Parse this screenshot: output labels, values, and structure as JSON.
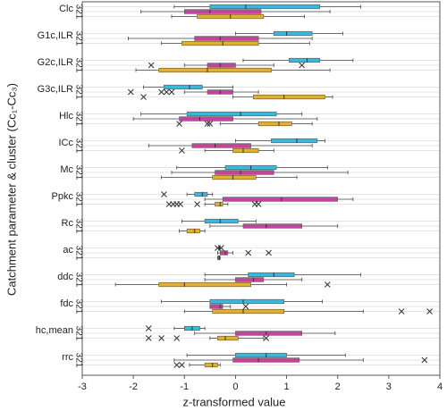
{
  "chart_data": {
    "type": "boxplot",
    "x_label": "z-transformed value",
    "y_label": "Catchment parameter & cluster (Cc₁-Cc₃)",
    "cluster_label": "321",
    "categories": [
      "Clc",
      "G1c,ILR",
      "G2c,ILR",
      "G3c,ILR",
      "Hlc",
      "ICc",
      "Mc",
      "Ppkc",
      "Rc",
      "ac",
      "ddc",
      "fdc",
      "hc,mean",
      "rrc"
    ],
    "series": [
      {
        "color": "#3fb7d8",
        "boxes": [
          {
            "whisker_low": -1.2,
            "q1": -0.5,
            "median": 0.2,
            "q3": 1.65,
            "whisker_high": 2.45,
            "outliers": []
          },
          {
            "whisker_low": 0.0,
            "q1": 0.75,
            "median": 1.0,
            "q3": 1.5,
            "whisker_high": 2.1,
            "outliers": []
          },
          {
            "whisker_low": 0.15,
            "q1": 1.05,
            "median": 1.4,
            "q3": 1.65,
            "whisker_high": 2.3,
            "outliers": []
          },
          {
            "whisker_low": -1.8,
            "q1": -1.4,
            "median": -0.9,
            "q3": -0.65,
            "whisker_high": -0.05,
            "outliers": []
          },
          {
            "whisker_low": -1.85,
            "q1": -0.95,
            "median": 0.1,
            "q3": 0.8,
            "whisker_high": 1.3,
            "outliers": []
          },
          {
            "whisker_low": 0.0,
            "q1": 0.7,
            "median": 1.2,
            "q3": 1.6,
            "whisker_high": 1.75,
            "outliers": []
          },
          {
            "whisker_low": -1.15,
            "q1": -0.2,
            "median": 0.3,
            "q3": 0.8,
            "whisker_high": 1.8,
            "outliers": []
          },
          {
            "whisker_low": -0.95,
            "q1": -0.8,
            "median": -0.65,
            "q3": -0.55,
            "whisker_high": -0.45,
            "outliers": [
              -1.4
            ]
          },
          {
            "whisker_low": -1.05,
            "q1": -0.6,
            "median": -0.3,
            "q3": 0.05,
            "whisker_high": 0.4,
            "outliers": []
          },
          {
            "whisker_low": -0.33,
            "q1": -0.32,
            "median": -0.315,
            "q3": -0.31,
            "whisker_high": -0.3,
            "outliers": [
              -0.35,
              -0.28
            ]
          },
          {
            "whisker_low": -0.6,
            "q1": 0.25,
            "median": 0.75,
            "q3": 1.15,
            "whisker_high": 2.45,
            "outliers": []
          },
          {
            "whisker_low": -1.45,
            "q1": -0.5,
            "median": 0.15,
            "q3": 0.95,
            "whisker_high": 1.7,
            "outliers": []
          },
          {
            "whisker_low": -1.2,
            "q1": -1.0,
            "median": -0.85,
            "q3": -0.7,
            "whisker_high": -0.6,
            "outliers": [
              -1.7
            ]
          },
          {
            "whisker_low": -0.95,
            "q1": 0.0,
            "median": 0.6,
            "q3": 1.0,
            "whisker_high": 2.15,
            "outliers": []
          }
        ]
      },
      {
        "color": "#c2449b",
        "boxes": [
          {
            "whisker_low": -1.85,
            "q1": -1.0,
            "median": -0.5,
            "q3": 0.5,
            "whisker_high": 1.85,
            "outliers": []
          },
          {
            "whisker_low": -2.1,
            "q1": -0.8,
            "median": -0.3,
            "q3": 0.45,
            "whisker_high": 1.5,
            "outliers": []
          },
          {
            "whisker_low": -1.0,
            "q1": -0.55,
            "median": -0.3,
            "q3": 0.0,
            "whisker_high": 0.75,
            "outliers": [
              -1.65,
              1.3
            ]
          },
          {
            "whisker_low": -1.0,
            "q1": -0.55,
            "median": -0.3,
            "q3": -0.05,
            "whisker_high": 0.45,
            "outliers": [
              -2.05,
              -1.45,
              -1.35,
              -1.25
            ]
          },
          {
            "whisker_low": -2.0,
            "q1": -1.1,
            "median": -0.7,
            "q3": -0.05,
            "whisker_high": 1.6,
            "outliers": []
          },
          {
            "whisker_low": -1.7,
            "q1": -0.85,
            "median": -0.4,
            "q3": 0.3,
            "whisker_high": 1.5,
            "outliers": []
          },
          {
            "whisker_low": -1.25,
            "q1": -0.4,
            "median": 0.1,
            "q3": 0.75,
            "whisker_high": 2.2,
            "outliers": []
          },
          {
            "whisker_low": -0.6,
            "q1": -0.25,
            "median": 0.9,
            "q3": 2.0,
            "whisker_high": 2.3,
            "outliers": []
          },
          {
            "whisker_low": -0.5,
            "q1": 0.15,
            "median": 0.6,
            "q3": 1.3,
            "whisker_high": 2.0,
            "outliers": []
          },
          {
            "whisker_low": -0.35,
            "q1": -0.3,
            "median": -0.2,
            "q3": -0.15,
            "whisker_high": -0.05,
            "outliers": [
              0.25,
              0.65
            ]
          },
          {
            "whisker_low": -0.6,
            "q1": 0.0,
            "median": 0.35,
            "q3": 0.55,
            "whisker_high": 1.3,
            "outliers": []
          },
          {
            "whisker_low": -0.5,
            "q1": -0.5,
            "median": -0.3,
            "q3": -0.25,
            "whisker_high": -0.1,
            "outliers": [
              0.2
            ]
          },
          {
            "whisker_low": -0.8,
            "q1": 0.0,
            "median": 0.6,
            "q3": 1.3,
            "whisker_high": 1.95,
            "outliers": []
          },
          {
            "whisker_low": -1.2,
            "q1": -0.05,
            "median": 0.45,
            "q3": 1.25,
            "whisker_high": 2.5,
            "outliers": [
              3.7
            ]
          }
        ]
      },
      {
        "color": "#e6b024",
        "boxes": [
          {
            "whisker_low": -1.25,
            "q1": -0.75,
            "median": -0.1,
            "q3": 0.55,
            "whisker_high": 1.35,
            "outliers": []
          },
          {
            "whisker_low": -1.45,
            "q1": -1.05,
            "median": -0.25,
            "q3": 0.45,
            "whisker_high": 1.45,
            "outliers": []
          },
          {
            "whisker_low": -1.95,
            "q1": -1.5,
            "median": -0.55,
            "q3": 0.7,
            "whisker_high": 1.85,
            "outliers": []
          },
          {
            "whisker_low": -0.05,
            "q1": 0.35,
            "median": 0.95,
            "q3": 1.75,
            "whisker_high": 1.9,
            "outliers": [
              -1.8
            ]
          },
          {
            "whisker_low": -0.3,
            "q1": 0.45,
            "median": 0.85,
            "q3": 1.1,
            "whisker_high": 1.5,
            "outliers": [
              -1.1,
              -0.55,
              -0.5
            ]
          },
          {
            "whisker_low": -0.6,
            "q1": -0.05,
            "median": 0.15,
            "q3": 0.45,
            "whisker_high": 0.75,
            "outliers": [
              -1.05
            ]
          },
          {
            "whisker_low": -1.45,
            "q1": -0.45,
            "median": -0.05,
            "q3": 0.4,
            "whisker_high": 1.2,
            "outliers": []
          },
          {
            "whisker_low": -0.6,
            "q1": -0.4,
            "median": -0.3,
            "q3": -0.25,
            "whisker_high": -0.15,
            "outliers": [
              -1.3,
              -1.22,
              -1.15,
              -1.08,
              -0.75,
              0.38,
              0.45
            ]
          },
          {
            "whisker_low": -1.1,
            "q1": -0.95,
            "median": -0.8,
            "q3": -0.7,
            "whisker_high": -0.6,
            "outliers": []
          },
          {
            "whisker_low": -0.35,
            "q1": -0.34,
            "median": -0.32,
            "q3": -0.31,
            "whisker_high": -0.3,
            "outliers": []
          },
          {
            "whisker_low": -2.35,
            "q1": -1.5,
            "median": -1.0,
            "q3": 0.3,
            "whisker_high": 1.0,
            "outliers": [
              1.8
            ]
          },
          {
            "whisker_low": -1.0,
            "q1": -0.45,
            "median": 0.15,
            "q3": 0.95,
            "whisker_high": 2.5,
            "outliers": [
              3.25,
              3.8
            ]
          },
          {
            "whisker_low": -0.5,
            "q1": -0.35,
            "median": -0.2,
            "q3": 0.05,
            "whisker_high": 0.55,
            "outliers": [
              -1.7,
              -1.45,
              -1.15,
              0.6
            ]
          },
          {
            "whisker_low": -0.9,
            "q1": -0.6,
            "median": -0.45,
            "q3": -0.35,
            "whisker_high": -0.3,
            "outliers": [
              -1.15,
              -1.05
            ]
          }
        ]
      }
    ],
    "xlim": [
      -3,
      4
    ],
    "xticks": [
      -3,
      -2,
      -1,
      0,
      1,
      2,
      3,
      4
    ],
    "grid": true
  }
}
